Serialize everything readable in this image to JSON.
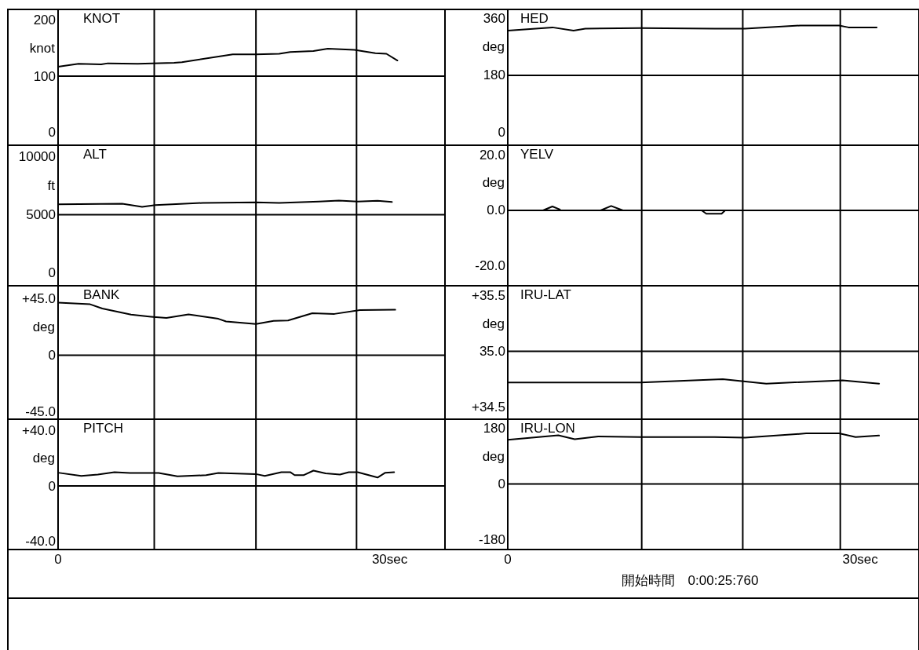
{
  "chart_data": [
    {
      "type": "line",
      "title": "KNOT",
      "ylabel": "knot",
      "color": "#000000",
      "xlim": [
        0,
        35
      ],
      "ylim": [
        -23,
        219
      ],
      "yticks": [
        0,
        100,
        200
      ],
      "tick_labels": "y",
      "ref_lines": [
        {
          "axis": "y",
          "value": 100
        },
        {
          "axis": "x",
          "value": 8.7
        },
        {
          "axis": "x",
          "value": 17.9
        },
        {
          "axis": "x",
          "value": 27.0
        }
      ],
      "x": [
        0,
        1.85,
        3.9,
        4.5,
        7.2,
        10.5,
        11.2,
        15.8,
        17.9,
        20,
        21,
        23.1,
        24.4,
        26.8,
        28.7,
        29.7,
        30.7
      ],
      "values": [
        117,
        122,
        121,
        123,
        122,
        124,
        125,
        139,
        139,
        140,
        143,
        145,
        149,
        147,
        141,
        140,
        128
      ]
    },
    {
      "type": "line",
      "title": "ALT",
      "ylabel": "ft",
      "color": "#000000",
      "xlim": [
        0,
        35
      ],
      "ylim": [
        -1080,
        10950
      ],
      "yticks": [
        0,
        5000,
        10000
      ],
      "tick_labels": "y",
      "ref_lines": [
        {
          "axis": "y",
          "value": 5000
        },
        {
          "axis": "x",
          "value": 8.7
        },
        {
          "axis": "x",
          "value": 17.9
        },
        {
          "axis": "x",
          "value": 27.0
        }
      ],
      "x": [
        0,
        5.8,
        7.6,
        8.8,
        13.1,
        17.9,
        20,
        23.6,
        25.4,
        27.1,
        28.9,
        30.2
      ],
      "values": [
        5890,
        5950,
        5680,
        5830,
        6010,
        6060,
        6010,
        6130,
        6220,
        6130,
        6190,
        6090
      ]
    },
    {
      "type": "line",
      "title": "BANK",
      "ylabel": "deg",
      "color": "#000000",
      "xlim": [
        0,
        35
      ],
      "ylim": [
        -51.1,
        55.5
      ],
      "yticks": [
        {
          "value": -45,
          "label": "-45.0"
        },
        0,
        {
          "value": 45,
          "label": "+45.0"
        }
      ],
      "tick_labels": "y",
      "ref_lines": [
        {
          "axis": "y",
          "value": 0
        },
        {
          "axis": "x",
          "value": 8.7
        },
        {
          "axis": "x",
          "value": 17.9
        },
        {
          "axis": "x",
          "value": 27.0
        }
      ],
      "x": [
        0,
        2.9,
        4,
        6.6,
        8.4,
        9.8,
        11.8,
        14.5,
        15.2,
        17.9,
        19.5,
        20.8,
        23,
        25,
        27.3,
        30.5
      ],
      "values": [
        42.0,
        40.7,
        37.3,
        32.4,
        30.8,
        29.8,
        32.6,
        29.1,
        27.0,
        24.9,
        27.5,
        27.7,
        33.6,
        33.0,
        36.0,
        36.3
      ]
    },
    {
      "type": "line",
      "title": "PITCH",
      "ylabel": "deg",
      "color": "#000000",
      "xlim": [
        0,
        35
      ],
      "ylim": [
        -46,
        48.3
      ],
      "yticks": [
        {
          "value": -40,
          "label": "-40.0"
        },
        0,
        {
          "value": 40,
          "label": "+40.0"
        }
      ],
      "xticks": [
        0,
        {
          "value": 30,
          "label": "30sec"
        }
      ],
      "ref_lines": [
        {
          "axis": "y",
          "value": 0
        },
        {
          "axis": "x",
          "value": 8.7
        },
        {
          "axis": "x",
          "value": 17.9
        },
        {
          "axis": "x",
          "value": 27.0
        }
      ],
      "x": [
        0,
        2.1,
        3.6,
        5.1,
        6.5,
        9.1,
        10.8,
        13.4,
        14.5,
        17.9,
        18.7,
        20.2,
        21,
        21.4,
        22.2,
        23.1,
        24.2,
        25.5,
        26.3,
        27.1,
        28.9,
        29.6,
        30.4
      ],
      "values": [
        9.6,
        7.3,
        8.3,
        10,
        9.4,
        9.4,
        7,
        7.8,
        9.4,
        8.6,
        7.3,
        10,
        10,
        7.8,
        7.8,
        11.1,
        9.1,
        8.3,
        10,
        10,
        6.1,
        9.6,
        10
      ]
    },
    {
      "type": "line",
      "title": "HED",
      "ylabel": "deg",
      "color": "#000000",
      "xlim": [
        0,
        35
      ],
      "ylim": [
        -42,
        389
      ],
      "yticks": [
        0,
        180,
        360
      ],
      "tick_labels": "y",
      "ref_lines": [
        {
          "axis": "y",
          "value": 180
        },
        {
          "axis": "x",
          "value": 11.4
        },
        {
          "axis": "x",
          "value": 20.0
        },
        {
          "axis": "x",
          "value": 28.3
        }
      ],
      "x": [
        0,
        3.8,
        5.6,
        6.6,
        11.3,
        17.6,
        20.2,
        24.9,
        28.2,
        29,
        31.4
      ],
      "values": [
        322,
        332,
        322,
        328,
        330,
        328,
        328,
        338,
        338,
        332,
        332
      ]
    },
    {
      "type": "line",
      "title": "YELV",
      "ylabel": "deg",
      "color": "#000000",
      "xlim": [
        0,
        35
      ],
      "ylim": [
        -27.2,
        23.5
      ],
      "yticks": [
        {
          "value": -20,
          "label": "-20.0"
        },
        {
          "value": 0,
          "label": "0.0"
        },
        {
          "value": 20,
          "label": "20.0"
        }
      ],
      "tick_labels": "y",
      "ref_lines": [
        {
          "axis": "y",
          "value": 0
        },
        {
          "axis": "x",
          "value": 11.4
        },
        {
          "axis": "x",
          "value": 20.0
        },
        {
          "axis": "x",
          "value": 28.3
        }
      ],
      "x": [
        0,
        3.0,
        3.8,
        4.4,
        4.5,
        7.9,
        8.8,
        9.8,
        16.5,
        16.9,
        18.2,
        18.5,
        31.4
      ],
      "values": [
        0,
        0,
        1.4,
        0.4,
        0,
        0,
        1.6,
        0,
        0,
        -1.2,
        -1.2,
        0,
        0
      ]
    },
    {
      "type": "line",
      "title": "IRU-LAT",
      "ylabel": "deg",
      "color": "#000000",
      "xlim": [
        0,
        35
      ],
      "ylim": [
        34.39,
        35.59
      ],
      "yticks": [
        {
          "value": 34.5,
          "label": "+34.5"
        },
        {
          "value": 35,
          "label": "35.0"
        },
        {
          "value": 35.5,
          "label": "+35.5"
        }
      ],
      "tick_labels": "y",
      "ref_lines": [
        {
          "axis": "y",
          "value": 35
        },
        {
          "axis": "x",
          "value": 11.4
        },
        {
          "axis": "x",
          "value": 20.0
        },
        {
          "axis": "x",
          "value": 28.3
        }
      ],
      "x": [
        0,
        11.3,
        18.3,
        22,
        28.5,
        31.6
      ],
      "values": [
        34.72,
        34.72,
        34.75,
        34.71,
        34.74,
        34.71
      ]
    },
    {
      "type": "line",
      "title": "IRU-LON",
      "ylabel": "deg",
      "color": "#000000",
      "xlim": [
        0,
        35
      ],
      "ylim": [
        -212,
        210
      ],
      "yticks": [
        -180,
        0,
        180
      ],
      "xticks": [
        0,
        {
          "value": 30,
          "label": "30sec"
        }
      ],
      "ref_lines": [
        {
          "axis": "y",
          "value": 0
        },
        {
          "axis": "x",
          "value": 11.4
        },
        {
          "axis": "x",
          "value": 20.0
        },
        {
          "axis": "x",
          "value": 28.3
        }
      ],
      "annotations": [
        "開始時間　0:00:25:760"
      ],
      "x": [
        0,
        4.3,
        5.7,
        7.7,
        11.3,
        17.6,
        20.2,
        25.4,
        28.2,
        29.6,
        31.6
      ],
      "values": [
        143,
        158,
        145,
        154,
        152,
        152,
        150,
        164,
        164,
        152,
        157
      ]
    }
  ]
}
